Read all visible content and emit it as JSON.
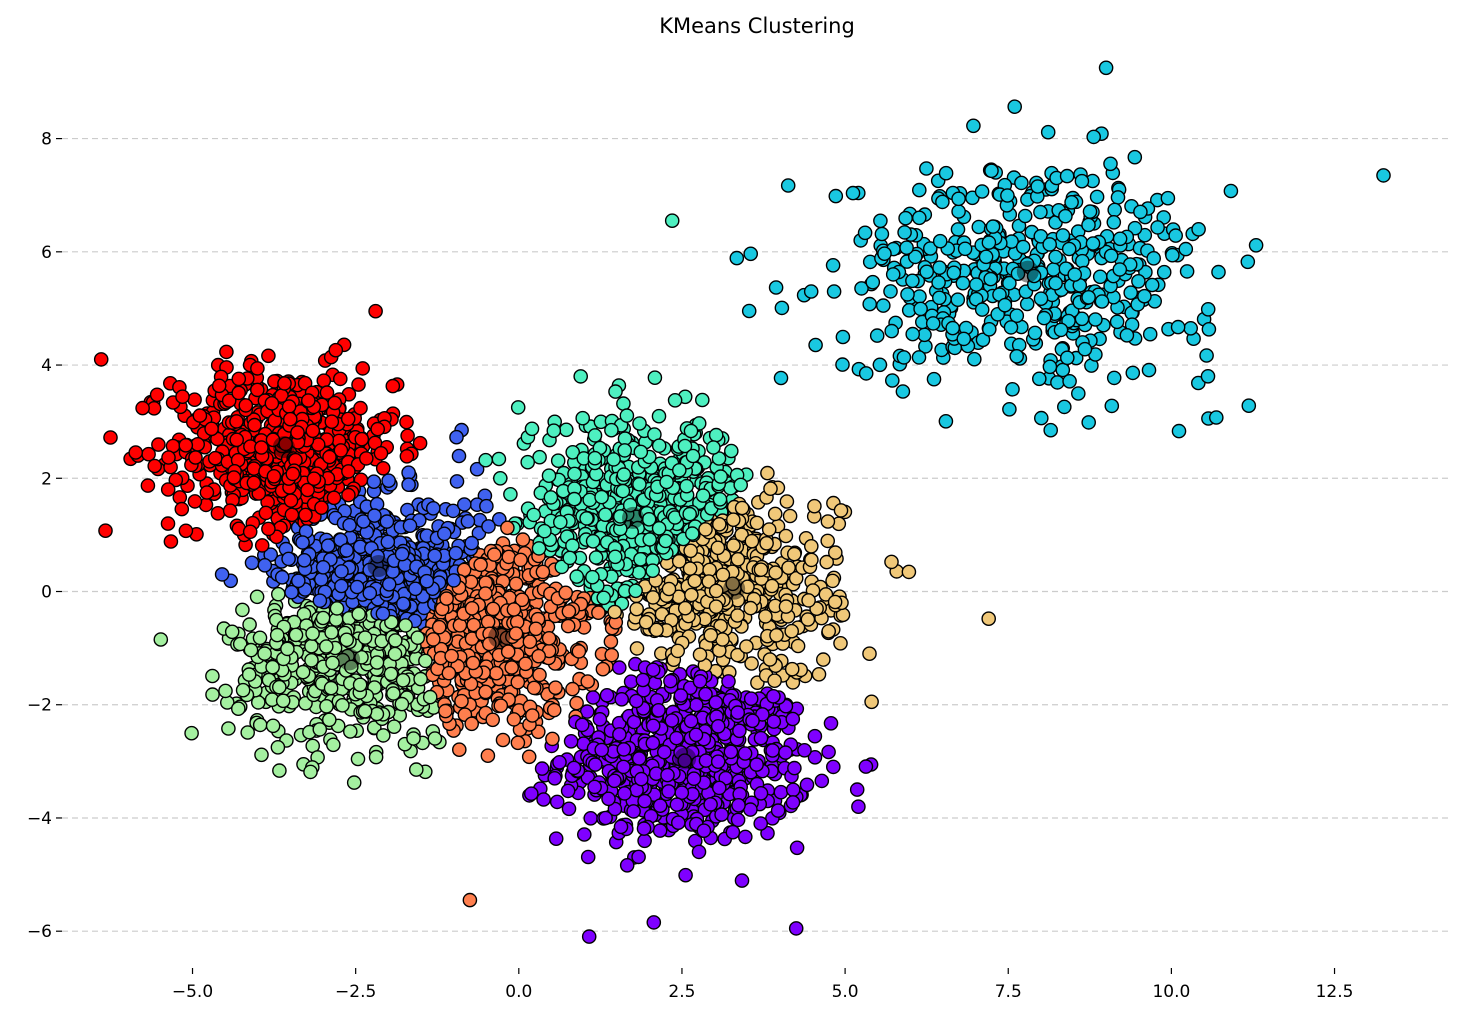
{
  "chart_data": {
    "type": "scatter",
    "title": "KMeans Clustering",
    "xlabel": "",
    "ylabel": "",
    "xlim": [
      -7.0,
      14.3
    ],
    "ylim": [
      -6.65,
      9.6
    ],
    "x_ticks": [
      -5.0,
      -2.5,
      0.0,
      2.5,
      5.0,
      7.5,
      10.0,
      12.5
    ],
    "x_tick_labels": [
      "−5.0",
      "−2.5",
      "0.0",
      "2.5",
      "5.0",
      "7.5",
      "10.0",
      "12.5"
    ],
    "y_ticks": [
      -6,
      -4,
      -2,
      0,
      2,
      4,
      6,
      8
    ],
    "y_tick_labels": [
      "−6",
      "−4",
      "−2",
      "0",
      "2",
      "4",
      "6",
      "8"
    ],
    "grid": "horizontal dashed",
    "legend": "none",
    "clusters": [
      {
        "color": "#7f00ff",
        "center": [
          2.55,
          -2.95
        ],
        "spread": [
          0.95,
          0.75
        ],
        "count": 650
      },
      {
        "color": "#ff0000",
        "center": [
          -3.6,
          2.55
        ],
        "spread": [
          0.85,
          0.7
        ],
        "count": 650
      },
      {
        "color": "#4062f0",
        "center": [
          -2.15,
          0.45
        ],
        "spread": [
          0.8,
          0.6
        ],
        "count": 500
      },
      {
        "color": "#a4f0a0",
        "center": [
          -2.6,
          -1.2
        ],
        "spread": [
          0.9,
          0.75
        ],
        "count": 550
      },
      {
        "color": "#ff7f4e",
        "center": [
          -0.3,
          -0.8
        ],
        "spread": [
          0.75,
          0.75
        ],
        "count": 550
      },
      {
        "color": "#4ef0c0",
        "center": [
          1.75,
          1.4
        ],
        "spread": [
          0.9,
          0.8
        ],
        "count": 600
      },
      {
        "color": "#f0c879",
        "center": [
          3.2,
          0.05
        ],
        "spread": [
          0.85,
          0.85
        ],
        "count": 500
      },
      {
        "color": "#19c8e1",
        "center": [
          7.8,
          5.65
        ],
        "spread": [
          1.45,
          0.95
        ],
        "count": 500
      }
    ],
    "centroids": [
      {
        "x": 2.55,
        "y": -2.95
      },
      {
        "x": -3.6,
        "y": 2.55
      },
      {
        "x": -2.15,
        "y": 0.45
      },
      {
        "x": -2.6,
        "y": -1.2
      },
      {
        "x": -0.3,
        "y": -0.8
      },
      {
        "x": 1.75,
        "y": 1.3
      },
      {
        "x": 3.3,
        "y": 0.05
      },
      {
        "x": 7.8,
        "y": 5.65
      }
    ],
    "notable_points": [
      {
        "x": 2.35,
        "y": 6.55,
        "cluster": 5
      },
      {
        "x": 7.2,
        "y": -0.48,
        "cluster": 6
      },
      {
        "x": 4.25,
        "y": -5.95,
        "cluster": 0
      },
      {
        "x": 9.0,
        "y": 9.25,
        "cluster": 7
      },
      {
        "x": 13.25,
        "y": 7.35,
        "cluster": 7
      },
      {
        "x": -6.4,
        "y": 4.1,
        "cluster": 1
      },
      {
        "x": -0.75,
        "y": -5.45,
        "cluster": 4
      },
      {
        "x": 8.15,
        "y": 2.85,
        "cluster": 7
      }
    ]
  }
}
